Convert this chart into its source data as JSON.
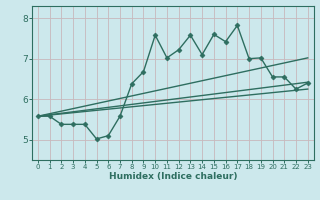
{
  "xlabel": "Humidex (Indice chaleur)",
  "bg_color": "#cce8ec",
  "grid_color": "#b8d8dc",
  "line_color": "#2e6e60",
  "xlim": [
    -0.5,
    23.5
  ],
  "ylim": [
    4.5,
    8.3
  ],
  "yticks": [
    5,
    6,
    7,
    8
  ],
  "xticks": [
    0,
    1,
    2,
    3,
    4,
    5,
    6,
    7,
    8,
    9,
    10,
    11,
    12,
    13,
    14,
    15,
    16,
    17,
    18,
    19,
    20,
    21,
    22,
    23
  ],
  "main_x": [
    0,
    1,
    2,
    3,
    4,
    5,
    6,
    7,
    8,
    9,
    10,
    11,
    12,
    13,
    14,
    15,
    16,
    17,
    18,
    19,
    20,
    21,
    22,
    23
  ],
  "main_y": [
    5.58,
    5.58,
    5.38,
    5.38,
    5.38,
    5.02,
    5.1,
    5.58,
    6.38,
    6.68,
    7.58,
    7.02,
    7.22,
    7.58,
    7.1,
    7.6,
    7.42,
    7.82,
    7.0,
    7.02,
    6.55,
    6.55,
    6.25,
    6.4
  ],
  "line1_x": [
    0,
    23
  ],
  "line1_y": [
    5.58,
    7.02
  ],
  "line2_x": [
    0,
    23
  ],
  "line2_y": [
    5.58,
    6.42
  ],
  "line3_x": [
    0,
    23
  ],
  "line3_y": [
    5.58,
    6.25
  ]
}
